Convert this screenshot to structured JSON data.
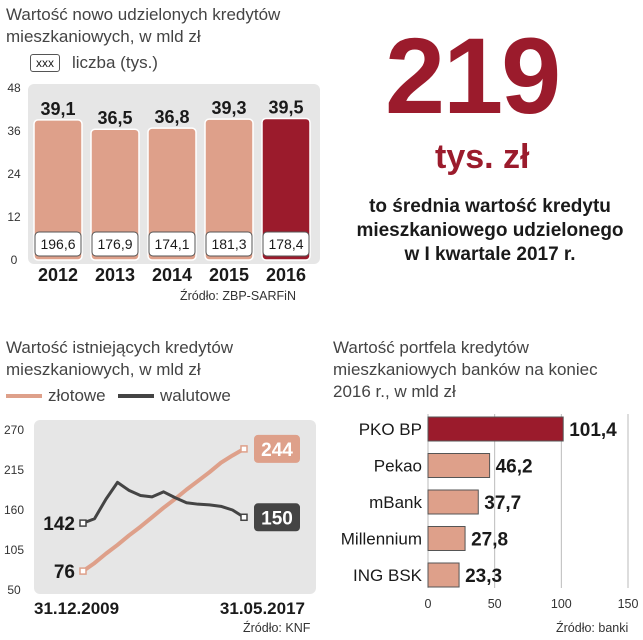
{
  "chart1": {
    "title_line1": "Wartość nowo udzielonych kredytów",
    "title_line2": "mieszkaniowych, w mld zł",
    "legend_box": "xxx",
    "legend_label": "liczba (tys.)",
    "source": "Źródło: ZBP-SARFiN"
  },
  "highlight": {
    "number": "219",
    "unit": "tys. zł",
    "line1": "to średnia wartość kredytu",
    "line2": "mieszkaniowego udzielonego",
    "line3": "w I kwartale 2017 r."
  },
  "chart2": {
    "title_line1": "Wartość istniejących kredytów",
    "title_line2": "mieszkaniowych, w mld zł",
    "legend_zlotowe": "złotowe",
    "legend_walutowe": "walutowe",
    "source": "Źródło: KNF"
  },
  "chart3": {
    "title_line1": "Wartość portfela kredytów",
    "title_line2": "mieszkaniowych banków na koniec",
    "title_line3": "2016 r., w mld zł",
    "source": "Źródło: banki"
  },
  "colors": {
    "accent": "#9b1b2c",
    "salmon": "#dea08a",
    "dark": "#444444",
    "panel": "#e6e6e6"
  },
  "chart_data": [
    {
      "type": "bar",
      "categories": [
        "2012",
        "2013",
        "2014",
        "2015",
        "2016"
      ],
      "values": [
        39.1,
        36.5,
        36.8,
        39.3,
        39.5
      ],
      "value_labels": [
        "39,1",
        "36,5",
        "36,8",
        "39,3",
        "39,5"
      ],
      "counts": [
        "196,6",
        "176,9",
        "174,1",
        "181,3",
        "178,4"
      ],
      "ylim": [
        0,
        48
      ],
      "yticks": [
        "0",
        "12",
        "24",
        "36",
        "48"
      ]
    },
    {
      "type": "line",
      "x_start_label": "31.12.2009",
      "x_end_label": "31.05.2017",
      "ylim": [
        50,
        270
      ],
      "yticks": [
        "50",
        "105",
        "160",
        "215",
        "270"
      ],
      "series": [
        {
          "name": "złotowe",
          "values": [
            76,
            87,
            100,
            112,
            125,
            137,
            150,
            163,
            175,
            188,
            200,
            212,
            225,
            235,
            244
          ],
          "start_label": "76",
          "end_label": "244"
        },
        {
          "name": "walutowe",
          "values": [
            142,
            148,
            175,
            198,
            187,
            180,
            178,
            185,
            177,
            170,
            168,
            167,
            165,
            160,
            150
          ],
          "start_label": "142",
          "end_label": "150"
        }
      ]
    },
    {
      "type": "bar",
      "orientation": "horizontal",
      "categories": [
        "PKO BP",
        "Pekao",
        "mBank",
        "Millennium",
        "ING BSK"
      ],
      "values": [
        101.4,
        46.2,
        37.7,
        27.8,
        23.3
      ],
      "value_labels": [
        "101,4",
        "46,2",
        "37,7",
        "27,8",
        "23,3"
      ],
      "xlim": [
        0,
        150
      ],
      "xticks": [
        "0",
        "50",
        "100",
        "150"
      ]
    }
  ]
}
